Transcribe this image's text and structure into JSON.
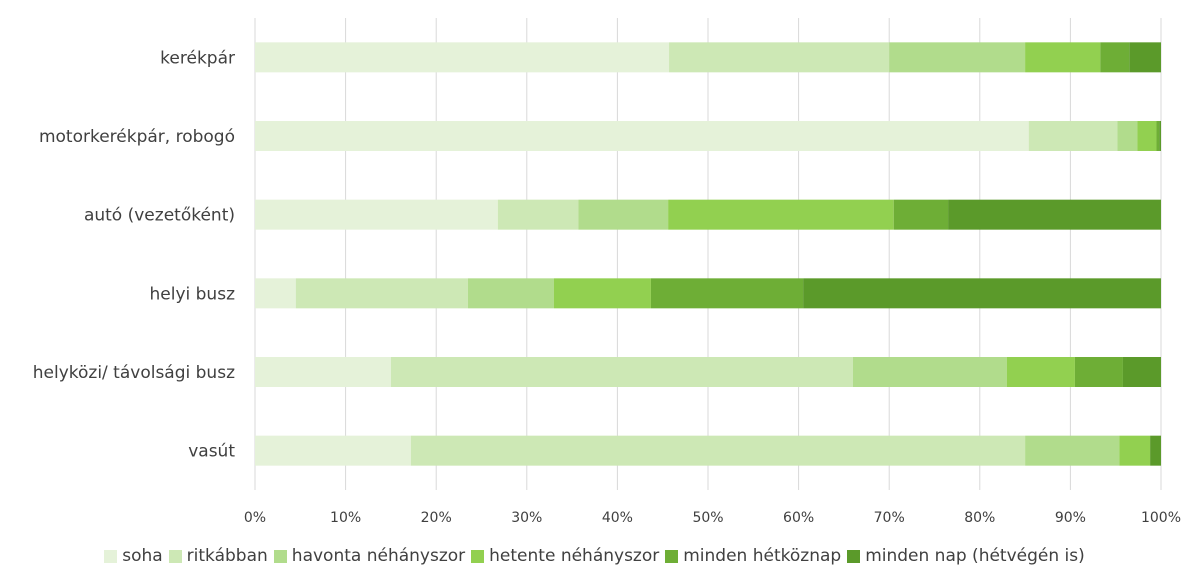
{
  "chart_data": {
    "type": "bar",
    "orientation": "horizontal",
    "stacked": "percent",
    "categories": [
      "kerékpár",
      "motorkerékpár, robogó",
      "autó (vezetőként)",
      "helyi busz",
      "helyközi/ távolsági busz",
      "vasút"
    ],
    "series": [
      {
        "name": "soha",
        "color": "#E5F2D9",
        "values": [
          45.7,
          85.4,
          26.8,
          4.5,
          15.0,
          17.2
        ]
      },
      {
        "name": "ritkábban",
        "color": "#CDE8B5",
        "values": [
          24.3,
          9.8,
          8.9,
          19.0,
          51.0,
          67.8
        ]
      },
      {
        "name": "havonta néhányszor",
        "color": "#B1DC8C",
        "values": [
          15.0,
          2.2,
          9.9,
          9.5,
          17.0,
          10.4
        ]
      },
      {
        "name": "hetente néhányszor",
        "color": "#92D050",
        "values": [
          8.3,
          2.1,
          24.9,
          10.7,
          7.5,
          3.4
        ]
      },
      {
        "name": "minden hétköznap",
        "color": "#6EAE36",
        "values": [
          3.2,
          0.3,
          6.0,
          16.8,
          5.3,
          0.0
        ]
      },
      {
        "name": "minden nap (hétvégén is)",
        "color": "#5B9A2A",
        "values": [
          3.5,
          0.2,
          23.5,
          39.5,
          4.2,
          1.2
        ]
      }
    ],
    "x_ticks": [
      "0%",
      "10%",
      "20%",
      "30%",
      "40%",
      "50%",
      "60%",
      "70%",
      "80%",
      "90%",
      "100%"
    ],
    "xlim": [
      0,
      100
    ],
    "grid": "vertical",
    "legend_position": "bottom",
    "title": "",
    "xlabel": "",
    "ylabel": ""
  }
}
